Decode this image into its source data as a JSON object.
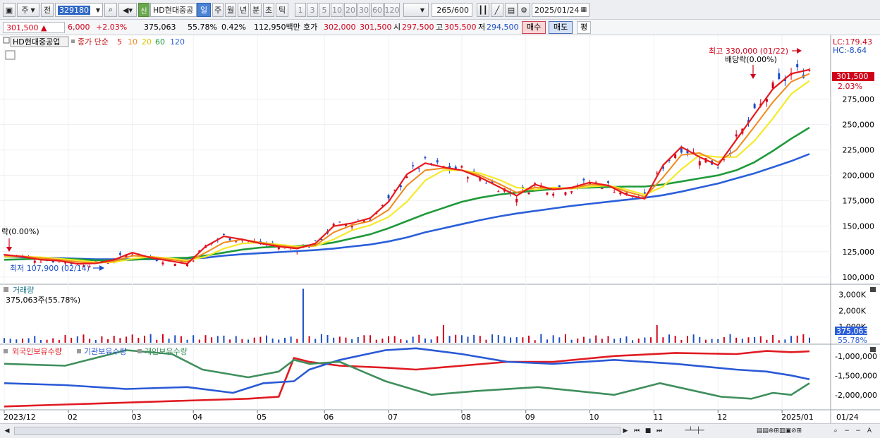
{
  "toolbar": {
    "type_label": "주",
    "prev_label": "전",
    "code": "329180",
    "credit_badge": "신",
    "stock_name": "HD현대중공",
    "periods": [
      "일",
      "주",
      "월",
      "년",
      "분",
      "초",
      "틱"
    ],
    "active_period": "일",
    "intervals": [
      "1",
      "3",
      "5",
      "10",
      "20",
      "30",
      "60",
      "120"
    ],
    "count": "265",
    "count_total": "/600",
    "date": "2025/01/24"
  },
  "quote": {
    "price": "301,500",
    "arrow": "▲",
    "change": "6,000",
    "change_pct": "+2.03%",
    "volume": "375,063",
    "vol_ratio": "55.78%",
    "turnover": "0.42%",
    "amount": "112,950백만",
    "ask_label": "호가",
    "ask_value": "302,000",
    "bid_value": "301,500",
    "open_label": "시",
    "open_value": "297,500",
    "high_label": "고",
    "high_value": "305,500",
    "low_label": "저",
    "low_value": "294,500",
    "buy_label": "매수",
    "sell_label": "매도",
    "eval_label": "평"
  },
  "legend": {
    "stock": "HD현대중공업",
    "ma_title": "종가 단순",
    "ma5": "5",
    "ma10": "10",
    "ma20": "20",
    "ma60": "60",
    "ma120": "120"
  },
  "colors": {
    "ma5": "#e8191d",
    "ma10": "#f08a1c",
    "ma20": "#f5ea2a",
    "ma60": "#1f9a3a",
    "ma120": "#2b5fd9",
    "up": "#d0021b",
    "down": "#1c4ec4",
    "foreign": "#e01b22",
    "institution": "#2a59d6",
    "individual": "#3f8f5d"
  },
  "chart_data": [
    {
      "type": "line",
      "title": "HD현대중공업",
      "ylim": [
        95000,
        335000
      ],
      "y_ticks": [
        "275,000",
        "250,000",
        "225,000",
        "200,000",
        "175,000",
        "150,000",
        "125,000",
        "100,000"
      ],
      "x_ticks": [
        "2023/12",
        "02",
        "03",
        "04",
        "05",
        "06",
        "07",
        "08",
        "09",
        "10",
        "11",
        "12",
        "2025/01",
        "01/24"
      ],
      "axis_top_labels": [
        "LC:179.43",
        "HC:-8.64"
      ],
      "price_tag": "301,500",
      "price_tag_pct": "2.03%",
      "annotations": {
        "high": "최고 330,000 (01/22)",
        "dividend_right": "배당락(0.00%)",
        "dividend_left": "락(0.00%)",
        "low": "최저 107,900 (02/14)"
      },
      "series": [
        {
          "name": "5",
          "key": "ma5",
          "x": [
            0,
            6,
            12,
            18,
            24,
            30,
            36,
            42,
            48,
            54,
            60,
            66,
            72,
            78,
            84,
            90,
            96,
            102,
            108,
            114,
            120,
            126,
            132,
            138,
            144,
            150,
            156,
            162,
            168,
            174,
            180,
            186,
            192,
            198,
            204,
            210,
            216,
            222,
            228,
            234,
            240,
            246,
            252,
            258,
            264
          ],
          "values": [
            122000,
            120000,
            117000,
            116000,
            113000,
            113500,
            117000,
            124000,
            119000,
            116000,
            113000,
            130000,
            140000,
            137000,
            133000,
            130000,
            128000,
            133000,
            150000,
            153000,
            158000,
            174000,
            201000,
            212000,
            208000,
            205000,
            198000,
            189000,
            180000,
            191000,
            186000,
            188000,
            193000,
            190000,
            181000,
            177000,
            210000,
            228000,
            218000,
            210000,
            235000,
            260000,
            285000,
            300000,
            304000
          ]
        },
        {
          "name": "10",
          "key": "ma10",
          "x": [
            0,
            6,
            12,
            18,
            24,
            30,
            36,
            42,
            48,
            54,
            60,
            66,
            72,
            78,
            84,
            90,
            96,
            102,
            108,
            114,
            120,
            126,
            132,
            138,
            144,
            150,
            156,
            162,
            168,
            174,
            180,
            186,
            192,
            198,
            204,
            210,
            216,
            222,
            228,
            234,
            240,
            246,
            252,
            258,
            264
          ],
          "values": [
            121000,
            120500,
            118500,
            117000,
            115000,
            113500,
            115500,
            121000,
            120000,
            117500,
            115000,
            124000,
            134000,
            137000,
            134000,
            131000,
            129000,
            131000,
            144000,
            151000,
            155000,
            166000,
            190000,
            205000,
            207000,
            205000,
            200000,
            192000,
            183000,
            188000,
            187000,
            187000,
            191000,
            190000,
            184000,
            179000,
            198000,
            220000,
            222000,
            213000,
            225000,
            248000,
            272000,
            292000,
            300000
          ]
        },
        {
          "name": "20",
          "key": "ma20",
          "x": [
            0,
            6,
            12,
            18,
            24,
            30,
            36,
            42,
            48,
            54,
            60,
            66,
            72,
            78,
            84,
            90,
            96,
            102,
            108,
            114,
            120,
            126,
            132,
            138,
            144,
            150,
            156,
            162,
            168,
            174,
            180,
            186,
            192,
            198,
            204,
            210,
            216,
            222,
            228,
            234,
            240,
            246,
            252,
            258,
            264
          ],
          "values": [
            120000,
            120000,
            119500,
            118000,
            116500,
            114500,
            114500,
            118000,
            120000,
            118500,
            116500,
            120000,
            128000,
            133000,
            134000,
            132000,
            130000,
            130500,
            137000,
            146000,
            151000,
            159000,
            174000,
            195000,
            205000,
            205000,
            202000,
            196000,
            188000,
            186000,
            188000,
            187000,
            189000,
            190000,
            186000,
            181000,
            189000,
            206000,
            220000,
            218000,
            218000,
            234000,
            256000,
            280000,
            293000
          ]
        },
        {
          "name": "60",
          "key": "ma60",
          "x": [
            0,
            6,
            12,
            18,
            24,
            30,
            36,
            42,
            48,
            54,
            60,
            66,
            72,
            78,
            84,
            90,
            96,
            102,
            108,
            114,
            120,
            126,
            132,
            138,
            144,
            150,
            156,
            162,
            168,
            174,
            180,
            186,
            192,
            198,
            204,
            210,
            216,
            222,
            228,
            234,
            240,
            246,
            252,
            258,
            264
          ],
          "values": [
            117000,
            117500,
            118000,
            118000,
            117500,
            116500,
            116500,
            117000,
            118000,
            118500,
            119000,
            121000,
            124000,
            127000,
            129000,
            130000,
            130500,
            131500,
            134000,
            138000,
            142000,
            148000,
            155000,
            162000,
            168000,
            174000,
            178000,
            181000,
            183000,
            185000,
            186500,
            187500,
            188000,
            188500,
            189000,
            189000,
            191000,
            194000,
            197000,
            200000,
            205000,
            213000,
            224000,
            236000,
            247000
          ]
        },
        {
          "name": "120",
          "key": "ma120",
          "x": [
            0,
            6,
            12,
            18,
            24,
            30,
            36,
            42,
            48,
            54,
            60,
            66,
            72,
            78,
            84,
            90,
            96,
            102,
            108,
            114,
            120,
            126,
            132,
            138,
            144,
            150,
            156,
            162,
            168,
            174,
            180,
            186,
            192,
            198,
            204,
            210,
            216,
            222,
            228,
            234,
            240,
            246,
            252,
            258,
            264
          ],
          "values": [
            120000,
            119500,
            119000,
            118500,
            118000,
            117500,
            117500,
            117500,
            117500,
            117500,
            118000,
            119000,
            121000,
            122500,
            123500,
            124500,
            125500,
            126500,
            128000,
            130000,
            132000,
            135000,
            139000,
            144000,
            148000,
            152000,
            156000,
            159500,
            162500,
            165000,
            167500,
            170000,
            172000,
            174000,
            176000,
            178000,
            180500,
            184000,
            188000,
            192000,
            197000,
            202000,
            208000,
            214000,
            221000
          ]
        }
      ]
    },
    {
      "type": "bar",
      "title": "거래량",
      "summary": "375,063주(55.78%)",
      "y_ticks": [
        "3,000K",
        "2,000K",
        "1,000K"
      ],
      "ylim": [
        0,
        3500
      ],
      "last_value_tag": "375,063",
      "last_pct_tag": "55.78%"
    },
    {
      "type": "line",
      "title": "외국인보유수량",
      "series_labels": [
        "외국인보유수량",
        "기관보유수량",
        "개인보유수량"
      ],
      "y_ticks": [
        "-1,000,000",
        "-1,500,000",
        "-2,000,000"
      ],
      "ylim": [
        -2350000,
        -750000
      ],
      "series": [
        {
          "name": "외국인보유수량",
          "key": "foreign",
          "x": [
            0,
            20,
            40,
            60,
            80,
            90,
            95,
            100,
            110,
            125,
            135,
            150,
            165,
            180,
            200,
            220,
            240,
            250,
            258,
            264
          ],
          "values": [
            -2300000,
            -2250000,
            -2200000,
            -2150000,
            -2100000,
            -2050000,
            -1050000,
            -1150000,
            -1250000,
            -1300000,
            -1350000,
            -1250000,
            -1150000,
            -1150000,
            -1000000,
            -920000,
            -950000,
            -870000,
            -900000,
            -880000
          ]
        },
        {
          "name": "기관보유수량",
          "key": "institution",
          "x": [
            0,
            20,
            40,
            60,
            75,
            85,
            95,
            100,
            110,
            125,
            135,
            150,
            165,
            180,
            200,
            220,
            240,
            250,
            258,
            264
          ],
          "values": [
            -1700000,
            -1750000,
            -1850000,
            -1800000,
            -1950000,
            -1700000,
            -1650000,
            -1350000,
            -1100000,
            -850000,
            -800000,
            -950000,
            -1150000,
            -1200000,
            -1100000,
            -1200000,
            -1350000,
            -1400000,
            -1500000,
            -1600000
          ]
        },
        {
          "name": "개인보유수량",
          "key": "individual",
          "x": [
            0,
            20,
            40,
            55,
            65,
            80,
            90,
            95,
            100,
            110,
            125,
            140,
            155,
            175,
            200,
            215,
            235,
            245,
            252,
            258,
            264
          ],
          "values": [
            -1200000,
            -1250000,
            -850000,
            -950000,
            -1350000,
            -1550000,
            -1400000,
            -1100000,
            -1200000,
            -1150000,
            -1650000,
            -2000000,
            -1900000,
            -1800000,
            -2000000,
            -1700000,
            -2050000,
            -2100000,
            -1950000,
            -2000000,
            -1700000
          ]
        }
      ]
    }
  ]
}
